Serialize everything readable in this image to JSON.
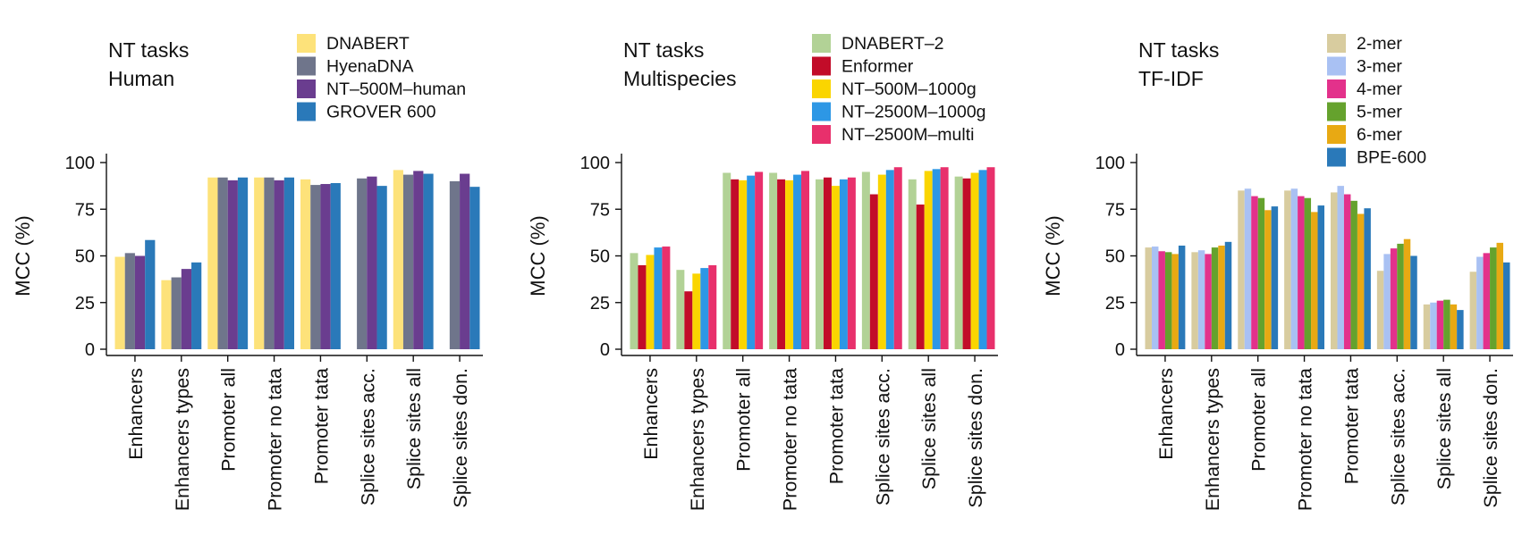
{
  "chart_data": [
    {
      "type": "bar",
      "title": [
        "NT tasks",
        "Human"
      ],
      "ylabel": "MCC (%)",
      "ylim": [
        0,
        100
      ],
      "yticks": [
        0,
        25,
        50,
        75,
        100
      ],
      "categories": [
        "Enhancers",
        "Enhancers types",
        "Promoter all",
        "Promoter no tata",
        "Promoter tata",
        "Splice sites acc.",
        "Splice sites all",
        "Splice sites don."
      ],
      "series": [
        {
          "name": "DNABERT",
          "color": "#fde27a",
          "values": [
            49.5,
            37,
            92,
            92,
            91,
            null,
            96,
            null
          ]
        },
        {
          "name": "HyenaDNA",
          "color": "#6f758b",
          "values": [
            51.5,
            38.5,
            92,
            92,
            88,
            91.5,
            93.5,
            90
          ]
        },
        {
          "name": "NT–500M–human",
          "color": "#6a3d8f",
          "values": [
            50,
            43,
            90.5,
            90.5,
            88.5,
            92.5,
            95.5,
            94
          ]
        },
        {
          "name": "GROVER 600",
          "color": "#2a79b9",
          "values": [
            58.5,
            46.5,
            92,
            92,
            89,
            87.5,
            94,
            87
          ]
        }
      ]
    },
    {
      "type": "bar",
      "title": [
        "NT tasks",
        "Multispecies"
      ],
      "ylabel": "MCC (%)",
      "ylim": [
        0,
        100
      ],
      "yticks": [
        0,
        25,
        50,
        75,
        100
      ],
      "categories": [
        "Enhancers",
        "Enhancers types",
        "Promoter all",
        "Promoter no tata",
        "Promoter tata",
        "Splice sites acc.",
        "Splice sites all",
        "Splice sites don."
      ],
      "series": [
        {
          "name": "DNABERT–2",
          "color": "#b2d296",
          "values": [
            51.5,
            42.5,
            94.5,
            94.5,
            91,
            95,
            91,
            92.5
          ]
        },
        {
          "name": "Enformer",
          "color": "#c20c29",
          "values": [
            45,
            31,
            91,
            91,
            92,
            83,
            77.5,
            91.5
          ]
        },
        {
          "name": "NT–500M–1000g",
          "color": "#fad500",
          "values": [
            50.5,
            40.5,
            90.5,
            90.5,
            87.5,
            93.5,
            95.5,
            94.5
          ]
        },
        {
          "name": "NT–2500M–1000g",
          "color": "#2d97e5",
          "values": [
            54.5,
            43.5,
            93,
            93.5,
            91,
            96,
            96.5,
            96
          ]
        },
        {
          "name": "NT–2500M–multi",
          "color": "#e8306c",
          "values": [
            55,
            45,
            95,
            95.5,
            92,
            97.5,
            97.5,
            97.5
          ]
        }
      ]
    },
    {
      "type": "bar",
      "title": [
        "NT tasks",
        "TF-IDF"
      ],
      "ylabel": "MCC (%)",
      "ylim": [
        0,
        100
      ],
      "yticks": [
        0,
        25,
        50,
        75,
        100
      ],
      "categories": [
        "Enhancers",
        "Enhancers types",
        "Promoter all",
        "Promoter no tata",
        "Promoter tata",
        "Splice sites acc.",
        "Splice sites all",
        "Splice sites don."
      ],
      "series": [
        {
          "name": "2-mer",
          "color": "#d8cc9f",
          "values": [
            54.5,
            52,
            85,
            85,
            84,
            42,
            24,
            41.5
          ]
        },
        {
          "name": "3-mer",
          "color": "#a9c1f3",
          "values": [
            55,
            53,
            86,
            86,
            87.5,
            51,
            25,
            49.5
          ]
        },
        {
          "name": "4-mer",
          "color": "#e3318b",
          "values": [
            52.5,
            51,
            82,
            82,
            83,
            54,
            26,
            51.5
          ]
        },
        {
          "name": "5-mer",
          "color": "#65a22d",
          "values": [
            52,
            54.5,
            81,
            81,
            79.5,
            56.5,
            26.5,
            54.5
          ]
        },
        {
          "name": "6-mer",
          "color": "#e8a913",
          "values": [
            51,
            55.5,
            74.5,
            73.5,
            72.5,
            59,
            24,
            57
          ]
        },
        {
          "name": "BPE-600",
          "color": "#2a79b9",
          "values": [
            55.5,
            57.5,
            76.5,
            77,
            75.5,
            50,
            21,
            46.5
          ]
        }
      ]
    }
  ]
}
